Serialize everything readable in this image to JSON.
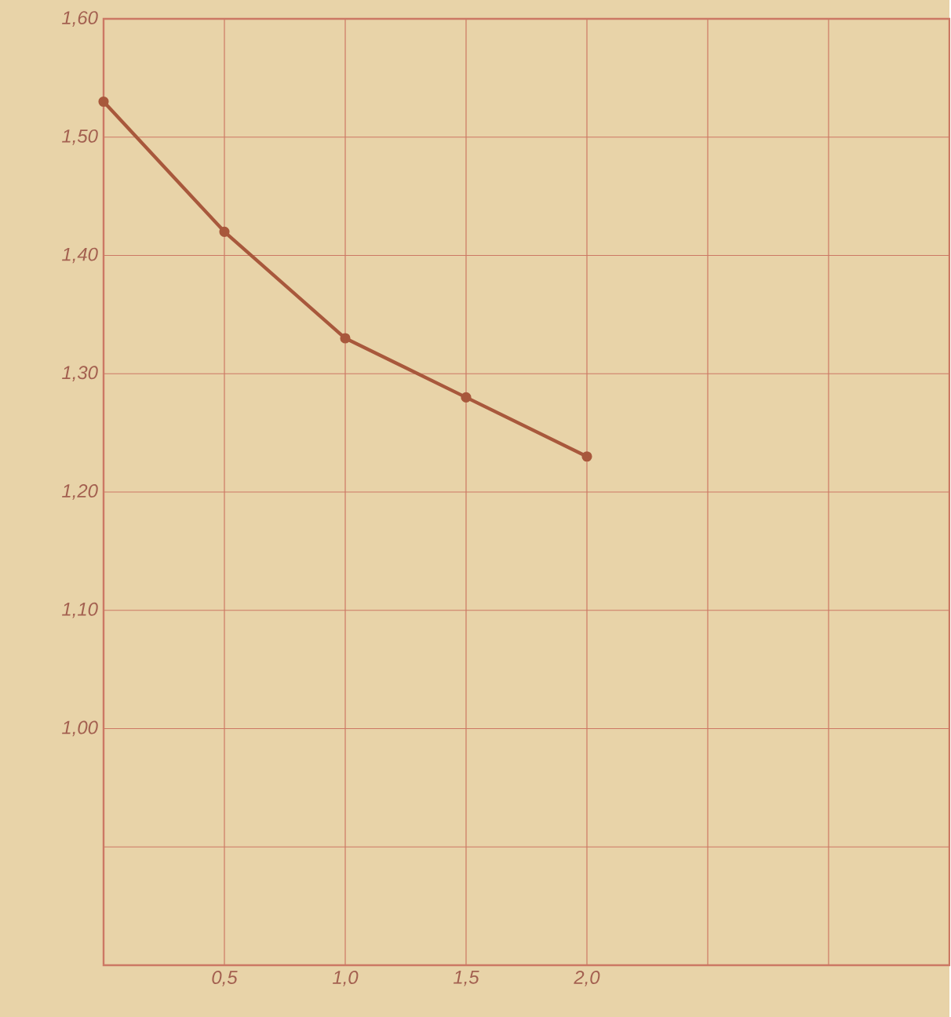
{
  "chart_data": {
    "type": "line",
    "x": [
      0,
      0.5,
      1.0,
      1.5,
      2.0
    ],
    "series": [
      {
        "color": "#a8583c",
        "values": [
          1.53,
          1.42,
          1.33,
          1.28,
          1.23
        ]
      }
    ],
    "xlim": [
      0,
      3.5
    ],
    "ylim": [
      0.8,
      1.6
    ],
    "xticks": [
      {
        "value": 0,
        "label": null
      },
      {
        "value": 0.5,
        "label": "0,5"
      },
      {
        "value": 1.0,
        "label": "1,0"
      },
      {
        "value": 1.5,
        "label": "1,5"
      },
      {
        "value": 2.0,
        "label": "2,0"
      },
      {
        "value": 2.5,
        "label": null
      },
      {
        "value": 3.0,
        "label": null
      }
    ],
    "yticks": [
      {
        "value": 0.8,
        "label": null
      },
      {
        "value": 0.9,
        "label": null
      },
      {
        "value": 1.0,
        "label": "1,00"
      },
      {
        "value": 1.1,
        "label": "1,10"
      },
      {
        "value": 1.2,
        "label": "1,20"
      },
      {
        "value": 1.3,
        "label": "1,30"
      },
      {
        "value": 1.4,
        "label": "1,40"
      },
      {
        "value": 1.5,
        "label": "1,50"
      },
      {
        "value": 1.6,
        "label": "1,60"
      }
    ],
    "grid": true,
    "marker": "circle",
    "line_style": "solid"
  }
}
